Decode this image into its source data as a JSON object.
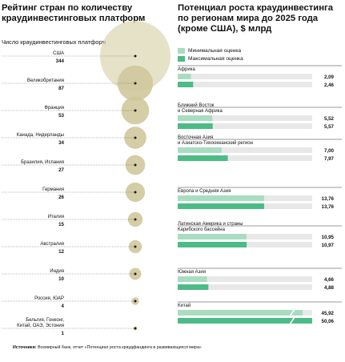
{
  "colors": {
    "bubble": "#cfc89b",
    "bubble_large": "#ddd8b5",
    "leader_line": "#555555",
    "dot": "#1a1a1a",
    "track": "#e8e8e8",
    "min_bar": "#a9dcc1",
    "max_bar": "#4cbc86"
  },
  "source": {
    "label": "Источники:",
    "text": " Всемирный банк, отчет «Потенциал роста краудфандинга в развивающихся мира»"
  },
  "chart_data": [
    {
      "type": "scatter",
      "title": "Рейтинг стран по количеству\nкраудинвестинговых платформ",
      "subtitle": "Число краудинвестинговых платформ",
      "categories": [
        "США",
        "Великобритания",
        "Франция",
        "Канада, Нидерланды",
        "Бразилия, Испания",
        "Германия",
        "Италия",
        "Австралия",
        "Индия",
        "Россия, ЮАР",
        "Бельгия, Гонконг,\nКитай, ОАЭ, Эстония"
      ],
      "values": [
        344,
        87,
        53,
        34,
        27,
        26,
        15,
        12,
        10,
        4,
        1
      ]
    },
    {
      "type": "bar",
      "title": "Потенциал роста краудинвестинга\nпо регионам мира до 2025 года\n(кроме США), $ млрд",
      "legend": [
        "Минимальная оценка",
        "Максимальная оценка"
      ],
      "categories": [
        "Африка",
        "Ближний Восток\nи Северная Африка",
        "Восточная Азия\nи Азиатско-Тихоокеанский регион",
        "Европа и Средняя Азия",
        "Латинская Америка и страны\nКарибского бассейна",
        "Южная Азия",
        "Китай"
      ],
      "series": [
        {
          "name": "Минимальная оценка",
          "values": [
            2.09,
            5.52,
            7.0,
            13.76,
            10.95,
            4.66,
            45.92
          ]
        },
        {
          "name": "Максимальная оценка",
          "values": [
            2.46,
            5.57,
            7.97,
            13.76,
            10.97,
            4.88,
            50.06
          ]
        }
      ],
      "value_labels": [
        [
          "2,09",
          "5,52",
          "7,00",
          "13,76",
          "10,95",
          "4,66",
          "45,92"
        ],
        [
          "2,46",
          "5,57",
          "7,97",
          "13,76",
          "10,97",
          "4,88",
          "50,06"
        ]
      ]
    }
  ]
}
